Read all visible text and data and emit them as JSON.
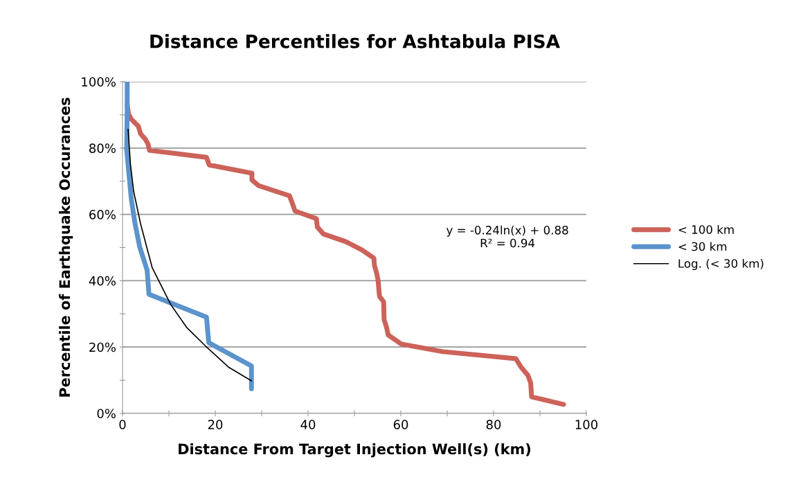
{
  "chart_data": {
    "type": "line",
    "title": "Distance Percentiles for Ashtabula PISA",
    "xlabel": "Distance From Target Injection Well(s) (km)",
    "ylabel": "Percentile of Earthquake Occurances",
    "series": [
      {
        "name": "< 100 km",
        "color": "#cc6259",
        "x": [
          1.0,
          1.3,
          1.9,
          3.4,
          3.9,
          4.9,
          5.5,
          5.8,
          18.1,
          18.7,
          27.9,
          27.9,
          29.3,
          36.0,
          36.7,
          37.2,
          41.8,
          42.0,
          43.3,
          48.1,
          51.6,
          54.2,
          54.3,
          54.8,
          55.1,
          55.4,
          56.3,
          56.4,
          56.9,
          57.3,
          60.1,
          69.1,
          84.8,
          85.9,
          87.4,
          88.0,
          88.2,
          95.1
        ],
        "values": [
          0.933,
          0.902,
          0.887,
          0.866,
          0.843,
          0.827,
          0.812,
          0.793,
          0.772,
          0.749,
          0.724,
          0.704,
          0.687,
          0.656,
          0.63,
          0.61,
          0.587,
          0.562,
          0.541,
          0.518,
          0.493,
          0.468,
          0.447,
          0.422,
          0.401,
          0.353,
          0.336,
          0.282,
          0.261,
          0.236,
          0.209,
          0.186,
          0.165,
          0.14,
          0.115,
          0.092,
          0.05,
          0.027
        ]
      },
      {
        "name": "< 30 km",
        "color": "#5b93cc",
        "x": [
          1.0,
          1.0,
          0.9,
          1.9,
          2.7,
          3.7,
          5.3,
          5.7,
          18.1,
          18.6,
          27.8,
          27.8
        ],
        "values": [
          1.0,
          0.912,
          0.794,
          0.645,
          0.572,
          0.502,
          0.432,
          0.359,
          0.29,
          0.213,
          0.143,
          0.074
        ]
      },
      {
        "name": "Log. (< 30 km)",
        "color": "#000000",
        "x": [
          1.2,
          1.7,
          2.4,
          3.9,
          6.4,
          10.4,
          13.9,
          17.9,
          22.8,
          27.8
        ],
        "values": [
          0.857,
          0.752,
          0.669,
          0.571,
          0.439,
          0.328,
          0.258,
          0.203,
          0.14,
          0.098
        ]
      }
    ],
    "xlim": [
      0,
      100
    ],
    "xticks": [
      0,
      {
        "value": 10,
        "label": null
      },
      20,
      {
        "value": 30,
        "label": null
      },
      40,
      {
        "value": 50,
        "label": null
      },
      60,
      {
        "value": 70,
        "label": null
      },
      80,
      {
        "value": 90,
        "label": null
      },
      100
    ],
    "ylim": [
      0,
      1
    ],
    "yticks": [
      {
        "value": 0,
        "label": "0%"
      },
      {
        "value": 0.1,
        "label": null
      },
      {
        "value": 0.2,
        "label": "20%"
      },
      {
        "value": 0.3,
        "label": null
      },
      {
        "value": 0.4,
        "label": "40%"
      },
      {
        "value": 0.5,
        "label": null
      },
      {
        "value": 0.6,
        "label": "60%"
      },
      {
        "value": 0.7,
        "label": null
      },
      {
        "value": 0.8,
        "label": "80%"
      },
      {
        "value": 0.9,
        "label": null
      },
      {
        "value": 1.0,
        "label": "100%"
      }
    ],
    "grid": "y",
    "legend": "right",
    "marker": "none",
    "line_style": "solid",
    "annotations": [
      "y = -0.24ln(x) + 0.88\nR² = 0.94"
    ]
  }
}
